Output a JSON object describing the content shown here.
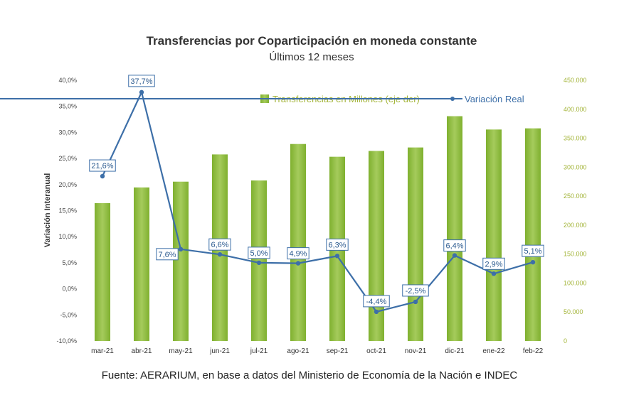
{
  "title": "Transferencias por Coparticipación en moneda constante",
  "subtitle": "Últimos 12 meses",
  "source": "Fuente: AERARIUM, en base a datos del Ministerio de Economía de la Nación e INDEC",
  "chart_data": {
    "type": "bar+line",
    "categories": [
      "mar-21",
      "abr-21",
      "may-21",
      "jun-21",
      "jul-21",
      "ago-21",
      "sep-21",
      "oct-21",
      "nov-21",
      "dic-21",
      "ene-22",
      "feb-22"
    ],
    "series": [
      {
        "name": "Transferencias en Millones (eje der)",
        "type": "bar",
        "axis": "right",
        "color": "#8dbb3c",
        "values": [
          238000,
          265000,
          275000,
          322000,
          277000,
          340000,
          318000,
          328000,
          334000,
          388000,
          365000,
          367000
        ]
      },
      {
        "name": "Variación Real",
        "type": "line",
        "axis": "left",
        "color": "#3d6fa8",
        "values": [
          21.6,
          37.7,
          7.6,
          6.6,
          5.0,
          4.9,
          6.3,
          -4.4,
          -2.5,
          6.4,
          2.9,
          5.1
        ],
        "labels": [
          "21,6%",
          "37,7%",
          "7,6%",
          "6,6%",
          "5,0%",
          "4,9%",
          "6,3%",
          "-4,4%",
          "-2,5%",
          "6,4%",
          "2,9%",
          "5,1%"
        ]
      }
    ],
    "ylabel": "Variación Interanual",
    "ylim_left": [
      -10,
      40
    ],
    "ylim_right": [
      0,
      450000
    ],
    "y_ticks_left": [
      "40,0%",
      "35,0%",
      "30,0%",
      "25,0%",
      "20,0%",
      "15,0%",
      "10,0%",
      "5,0%",
      "0,0%",
      "-5,0%",
      "-10,0%"
    ],
    "y_ticks_right": [
      "450.000",
      "400.000",
      "350.000",
      "300.000",
      "250.000",
      "200.000",
      "150.000",
      "100.000",
      "50.000",
      "0"
    ],
    "legend_position": "top-right",
    "grid": false
  },
  "colors": {
    "bar": "#8dbb3c",
    "bar_dark": "#6e9a2a",
    "line": "#3d6fa8",
    "right_axis": "#a4b53a"
  }
}
